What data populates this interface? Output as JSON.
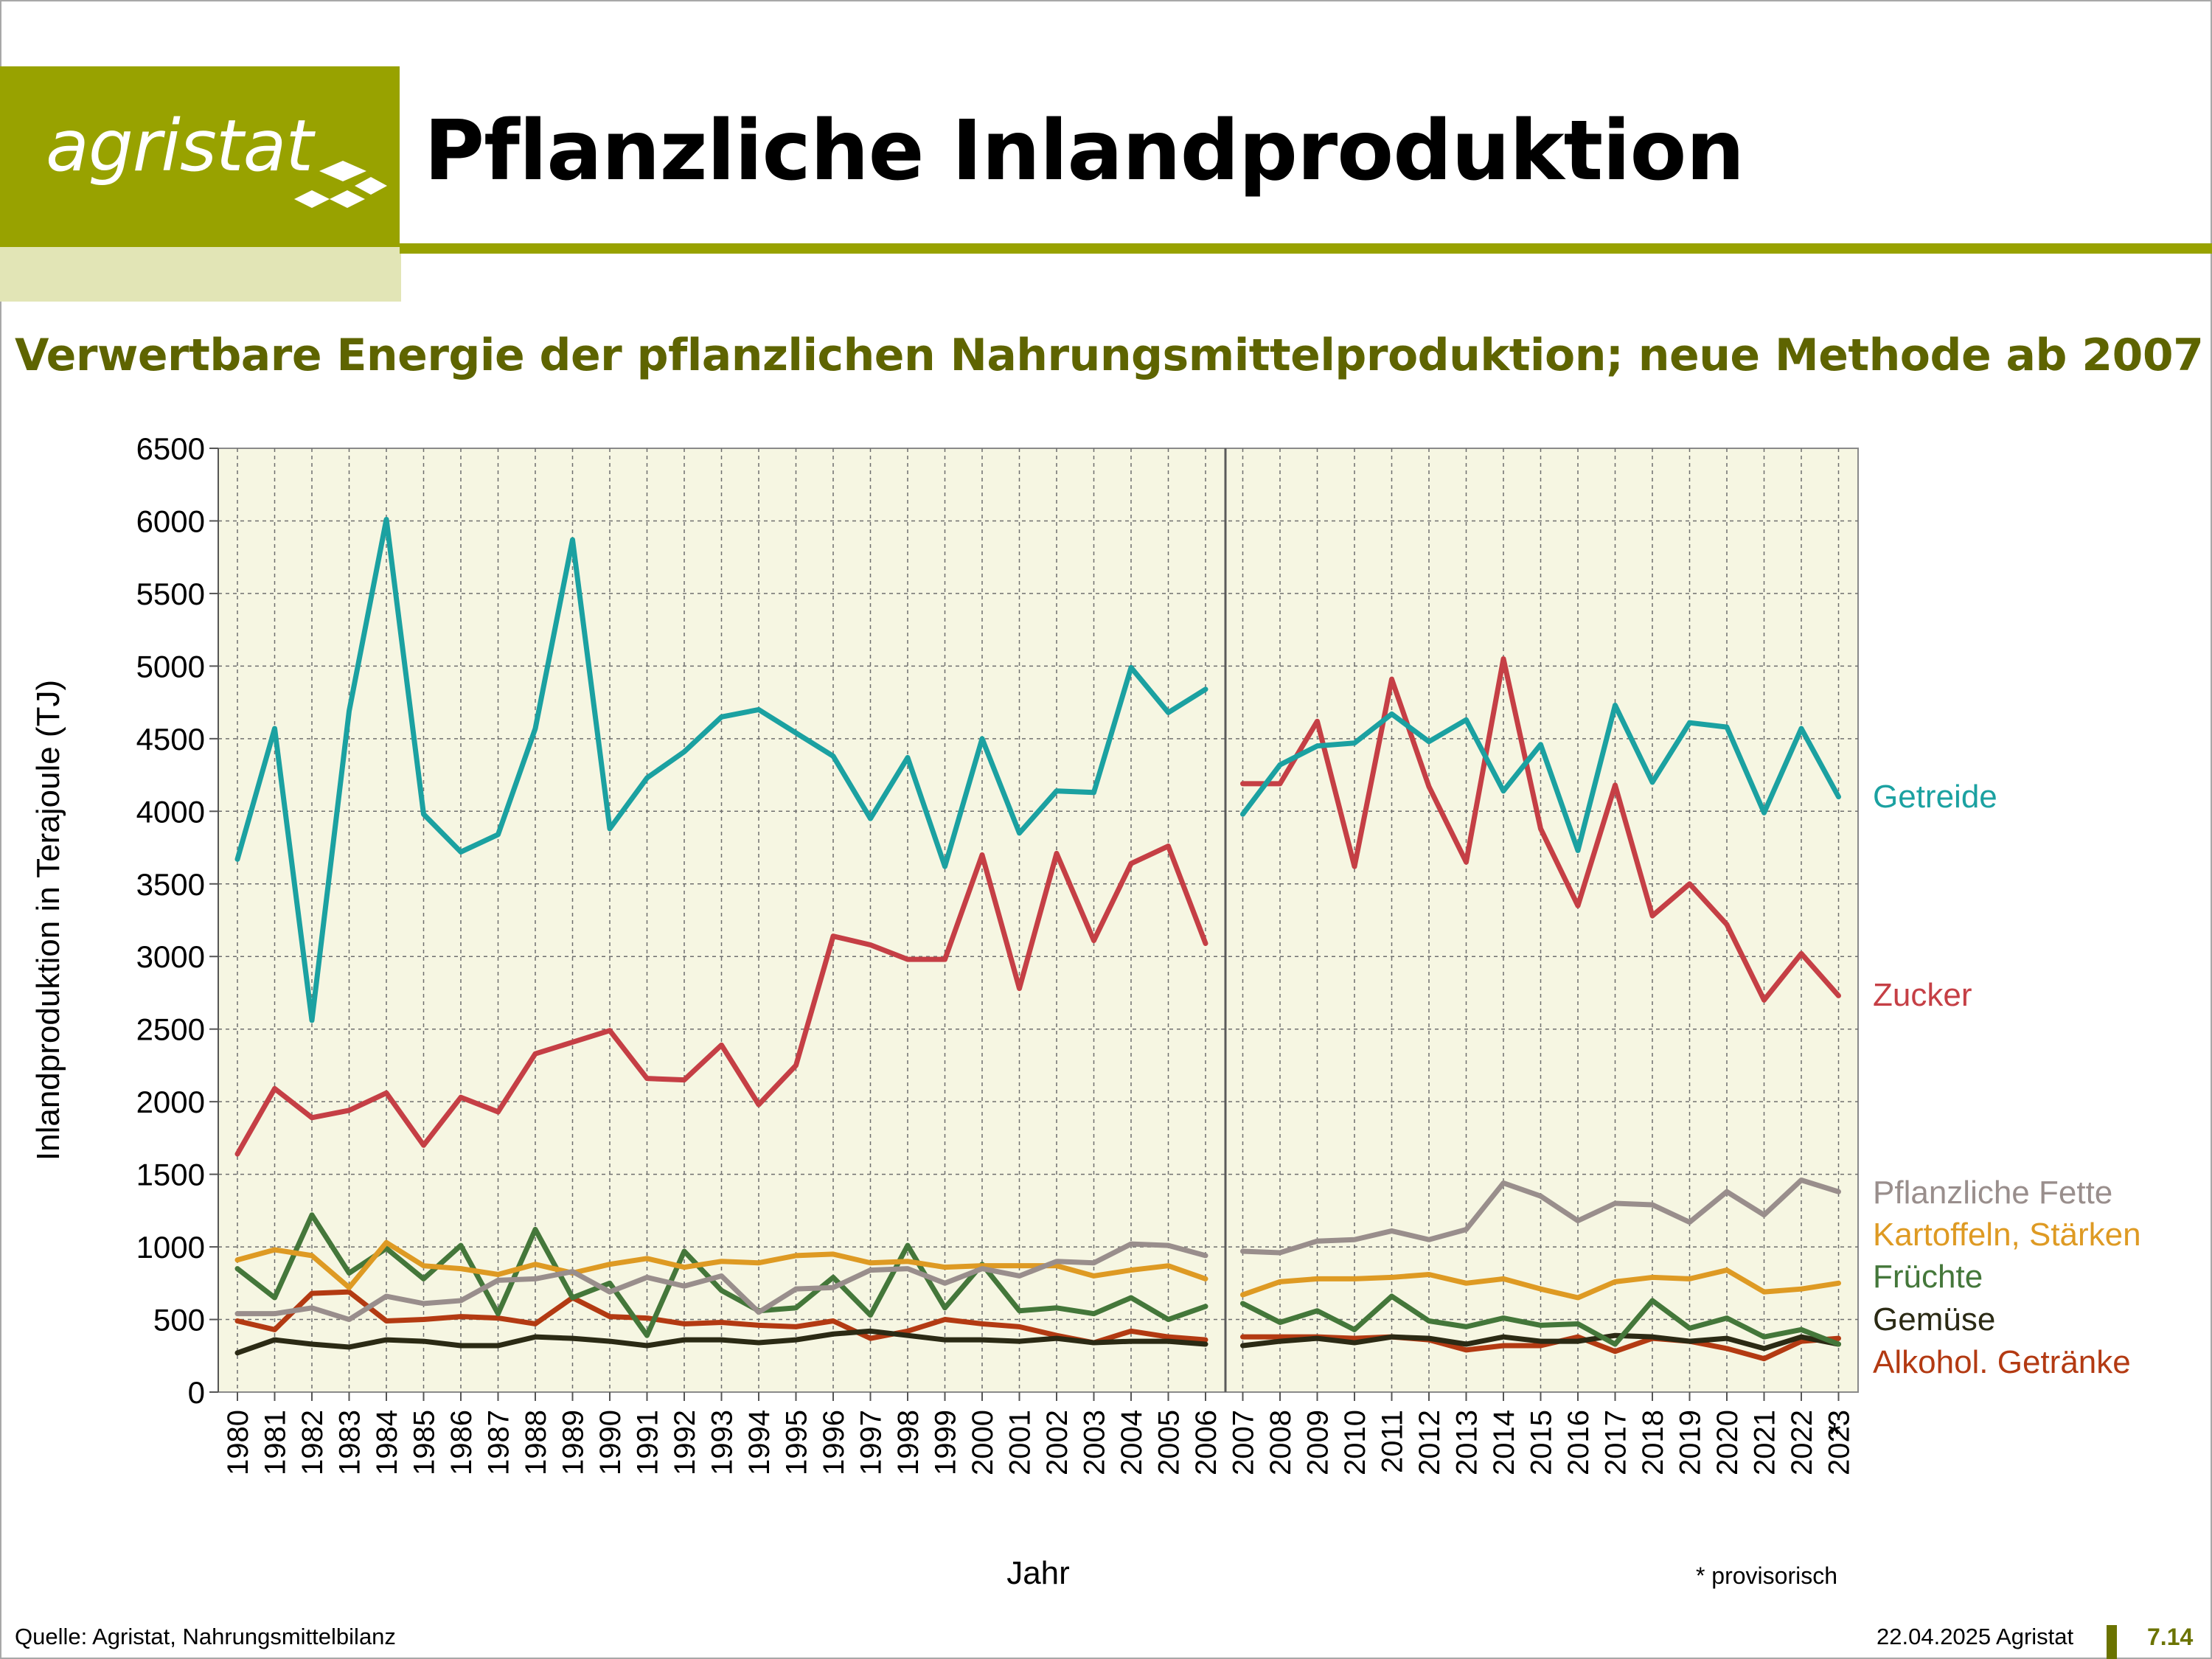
{
  "header": {
    "logo_text": "agristat",
    "title": "Pflanzliche Inlandproduktion",
    "subtitle": "Verwertbare Energie der pflanzlichen Nahrungsmittelproduktion; neue Methode ab 2007"
  },
  "footer": {
    "source": "Quelle: Agristat, Nahrungsmittelbilanz",
    "date": "22.04.2025 Agristat",
    "page": "7.14"
  },
  "chart_data": {
    "type": "line",
    "ylabel": "Inlandproduktion in Terajoule (TJ)",
    "xlabel": "Jahr",
    "ylim": [
      0,
      6500
    ],
    "y_ticks": [
      0,
      500,
      1000,
      1500,
      2000,
      2500,
      3000,
      3500,
      4000,
      4500,
      5000,
      5500,
      6000,
      6500
    ],
    "grid": true,
    "legend_placement": "right, labels beside line ends",
    "method_break": "between 2006 and 2007",
    "footnote_marker": "*",
    "footnote": "* provisorisch",
    "categories": [
      "1980",
      "1981",
      "1982",
      "1983",
      "1984",
      "1985",
      "1986",
      "1987",
      "1988",
      "1989",
      "1990",
      "1991",
      "1992",
      "1993",
      "1994",
      "1995",
      "1996",
      "1997",
      "1998",
      "1999",
      "2000",
      "2001",
      "2002",
      "2003",
      "2004",
      "2005",
      "2006",
      "2007",
      "2008",
      "2009",
      "2010",
      "2011",
      "2012",
      "2013",
      "2014",
      "2015",
      "2016",
      "2017",
      "2018",
      "2019",
      "2020",
      "2021",
      "2022",
      "2023"
    ],
    "series": [
      {
        "name": "Getreide",
        "color": "#1ba1a1",
        "values": [
          3670,
          4570,
          2560,
          4690,
          6010,
          3980,
          3720,
          3840,
          4570,
          5870,
          3880,
          4230,
          4410,
          4650,
          4700,
          4540,
          4380,
          3950,
          4370,
          3620,
          4500,
          3850,
          4140,
          4130,
          4990,
          4680,
          4840,
          3980,
          4320,
          4450,
          4470,
          4670,
          4480,
          4630,
          4140,
          4460,
          3730,
          4730,
          4200,
          4610,
          4580,
          3990,
          4570,
          4100
        ]
      },
      {
        "name": "Zucker",
        "color": "#c53f45",
        "values": [
          1640,
          2090,
          1890,
          1940,
          2060,
          1700,
          2030,
          1930,
          2330,
          2410,
          2490,
          2160,
          2150,
          2390,
          1980,
          2250,
          3140,
          3080,
          2980,
          2980,
          3700,
          2780,
          3710,
          3110,
          3640,
          3760,
          3090,
          4190,
          4190,
          4620,
          3620,
          4910,
          4170,
          3650,
          5050,
          3880,
          3350,
          4180,
          3280,
          3500,
          3220,
          2700,
          3020,
          2730
        ]
      },
      {
        "name": "Pflanzliche Fette",
        "color": "#998e8c",
        "values": [
          540,
          540,
          580,
          500,
          660,
          610,
          630,
          770,
          780,
          830,
          690,
          790,
          730,
          800,
          550,
          710,
          720,
          840,
          850,
          750,
          850,
          800,
          900,
          890,
          1020,
          1010,
          940,
          970,
          960,
          1040,
          1050,
          1110,
          1050,
          1120,
          1440,
          1350,
          1180,
          1300,
          1290,
          1170,
          1380,
          1220,
          1460,
          1380
        ]
      },
      {
        "name": "Kartoffeln, Stärken",
        "color": "#de9a23",
        "values": [
          910,
          980,
          940,
          720,
          1030,
          870,
          850,
          810,
          880,
          820,
          880,
          920,
          860,
          900,
          890,
          940,
          950,
          890,
          900,
          860,
          870,
          870,
          870,
          800,
          840,
          870,
          780,
          670,
          760,
          780,
          780,
          790,
          810,
          750,
          780,
          710,
          650,
          760,
          790,
          780,
          840,
          690,
          710,
          750
        ]
      },
      {
        "name": "Früchte",
        "color": "#44773a",
        "values": [
          850,
          650,
          1220,
          820,
          990,
          780,
          1010,
          540,
          1120,
          650,
          750,
          390,
          970,
          700,
          560,
          580,
          790,
          530,
          1010,
          580,
          880,
          560,
          580,
          540,
          650,
          500,
          590,
          610,
          480,
          560,
          430,
          660,
          490,
          450,
          510,
          460,
          470,
          330,
          630,
          440,
          510,
          380,
          430,
          330
        ]
      },
      {
        "name": "Gemüse",
        "color": "#2b2a14",
        "values": [
          270,
          360,
          330,
          310,
          360,
          350,
          320,
          320,
          380,
          370,
          350,
          320,
          360,
          360,
          340,
          360,
          400,
          420,
          390,
          360,
          360,
          350,
          370,
          340,
          350,
          350,
          330,
          320,
          350,
          370,
          340,
          380,
          370,
          330,
          380,
          350,
          350,
          390,
          380,
          350,
          370,
          300,
          380,
          330
        ]
      },
      {
        "name": "Alkohol. Getränke",
        "color": "#b33a12",
        "values": [
          490,
          430,
          680,
          690,
          490,
          500,
          520,
          510,
          470,
          650,
          520,
          510,
          470,
          480,
          460,
          450,
          490,
          370,
          420,
          500,
          470,
          450,
          390,
          340,
          420,
          380,
          360,
          380,
          380,
          380,
          370,
          380,
          360,
          290,
          320,
          320,
          380,
          280,
          370,
          350,
          300,
          230,
          350,
          370
        ]
      }
    ]
  }
}
